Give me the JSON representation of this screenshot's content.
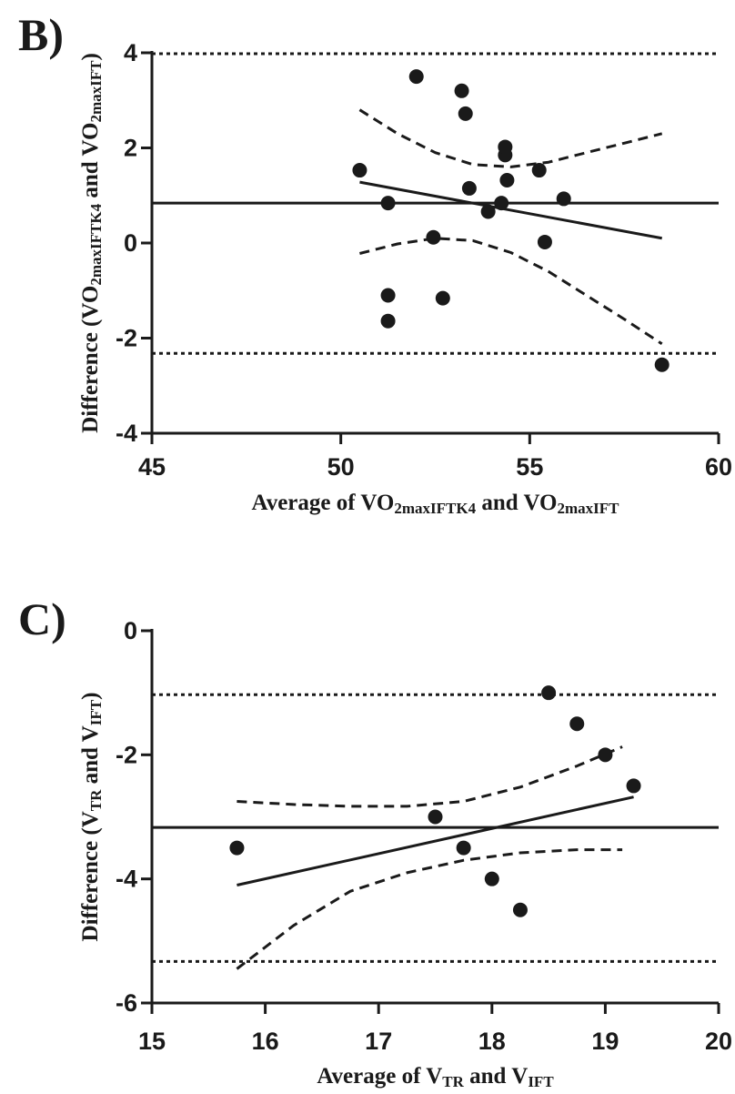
{
  "chart_data": [
    {
      "panel_label": "B)",
      "type": "scatter",
      "xlabel": {
        "main": "Average of VO",
        "sub1": "2maxIFTK4",
        "mid": " and VO",
        "sub2": "2maxIFT",
        "tail": ""
      },
      "ylabel": {
        "main": "Difference (VO",
        "sub1": "2maxIFTK4",
        "mid": " and VO",
        "sub2": "2maxIFT",
        "tail": ")"
      },
      "xlim": [
        45,
        60
      ],
      "ylim": [
        -4,
        4
      ],
      "xticks": [
        45,
        50,
        55,
        60
      ],
      "yticks": [
        -4,
        -2,
        0,
        2,
        4
      ],
      "points": [
        {
          "x": 50.5,
          "y": 1.53
        },
        {
          "x": 51.25,
          "y": 0.84
        },
        {
          "x": 51.25,
          "y": -1.1
        },
        {
          "x": 51.25,
          "y": -1.64
        },
        {
          "x": 52.0,
          "y": 3.5
        },
        {
          "x": 52.45,
          "y": 0.12
        },
        {
          "x": 52.7,
          "y": -1.16
        },
        {
          "x": 53.2,
          "y": 3.2
        },
        {
          "x": 53.3,
          "y": 2.72
        },
        {
          "x": 53.4,
          "y": 1.15
        },
        {
          "x": 53.9,
          "y": 0.66
        },
        {
          "x": 54.25,
          "y": 0.84
        },
        {
          "x": 54.35,
          "y": 1.85
        },
        {
          "x": 54.35,
          "y": 2.02
        },
        {
          "x": 54.4,
          "y": 1.32
        },
        {
          "x": 55.25,
          "y": 1.53
        },
        {
          "x": 55.4,
          "y": 0.02
        },
        {
          "x": 55.9,
          "y": 0.93
        },
        {
          "x": 58.5,
          "y": -2.56
        }
      ],
      "mean_bias": 0.84,
      "limits_of_agreement": [
        -2.32,
        3.98
      ],
      "regression_line": {
        "x": [
          50.5,
          58.5
        ],
        "y": [
          1.28,
          0.1
        ]
      },
      "confidence_band_upper": {
        "x": [
          50.5,
          51.5,
          52.5,
          53.5,
          54.5,
          55.5,
          56.5,
          57.5,
          58.5
        ],
        "y": [
          2.8,
          2.3,
          1.9,
          1.65,
          1.6,
          1.7,
          1.9,
          2.1,
          2.3
        ]
      },
      "confidence_band_lower": {
        "x": [
          50.5,
          51.5,
          52.5,
          53.5,
          54.5,
          55.5,
          56.5,
          57.5,
          58.5
        ],
        "y": [
          -0.22,
          -0.02,
          0.1,
          0.05,
          -0.2,
          -0.6,
          -1.1,
          -1.6,
          -2.12
        ]
      }
    },
    {
      "panel_label": "C)",
      "type": "scatter",
      "xlabel": {
        "main": "Average of V",
        "sub1": "TR",
        "mid": " and V",
        "sub2": "IFT",
        "tail": ""
      },
      "ylabel": {
        "main": "Difference (V",
        "sub1": "TR",
        "mid": " and V",
        "sub2": "IFT",
        "tail": ")"
      },
      "xlim": [
        15,
        20
      ],
      "ylim": [
        -6,
        0
      ],
      "xticks": [
        15,
        16,
        17,
        18,
        19,
        20
      ],
      "yticks": [
        -6,
        -4,
        -2,
        0
      ],
      "points": [
        {
          "x": 15.75,
          "y": -3.5
        },
        {
          "x": 17.5,
          "y": -3.0
        },
        {
          "x": 17.75,
          "y": -3.5
        },
        {
          "x": 18.0,
          "y": -4.0
        },
        {
          "x": 18.25,
          "y": -4.5
        },
        {
          "x": 18.5,
          "y": -1.0
        },
        {
          "x": 18.75,
          "y": -1.5
        },
        {
          "x": 19.0,
          "y": -2.0
        },
        {
          "x": 19.25,
          "y": -2.5
        }
      ],
      "mean_bias": -3.17,
      "limits_of_agreement": [
        -5.33,
        -1.03
      ],
      "regression_line": {
        "x": [
          15.75,
          19.25
        ],
        "y": [
          -4.1,
          -2.68
        ]
      },
      "confidence_band_upper": {
        "x": [
          15.75,
          16.25,
          16.75,
          17.25,
          17.75,
          18.25,
          18.75,
          19.15
        ],
        "y": [
          -2.75,
          -2.8,
          -2.83,
          -2.83,
          -2.75,
          -2.52,
          -2.18,
          -1.87
        ]
      },
      "confidence_band_lower": {
        "x": [
          15.75,
          16.25,
          16.75,
          17.25,
          17.75,
          18.25,
          18.75,
          19.15
        ],
        "y": [
          -5.45,
          -4.75,
          -4.2,
          -3.9,
          -3.7,
          -3.58,
          -3.53,
          -3.53
        ]
      }
    }
  ]
}
